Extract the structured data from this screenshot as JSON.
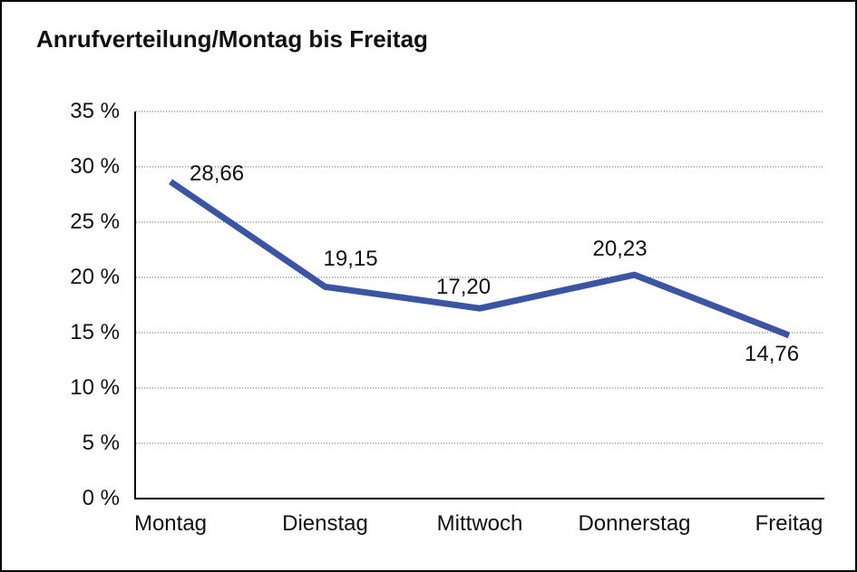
{
  "chart_data": {
    "type": "line",
    "title": "Anrufverteilung/Montag bis Freitag",
    "categories": [
      "Montag",
      "Dienstag",
      "Mittwoch",
      "Donnerstag",
      "Freitag"
    ],
    "values": [
      28.66,
      19.15,
      17.2,
      20.23,
      14.76
    ],
    "value_labels": [
      "28,66",
      "19,15",
      "17,20",
      "20,23",
      "14,76"
    ],
    "xlabel": "",
    "ylabel": "",
    "ylim": [
      0,
      35
    ],
    "y_tick_step": 5,
    "y_tick_labels": [
      "0 %",
      "5 %",
      "10 %",
      "15 %",
      "20 %",
      "25 %",
      "30 %",
      "35 %"
    ],
    "grid": "horizontal-dotted",
    "legend": "none",
    "line_color": "#3A55A4",
    "axis_color": "#000000",
    "gridline_color": "#666666",
    "text_color": "#111111",
    "background_color": "#FFFFFF"
  }
}
